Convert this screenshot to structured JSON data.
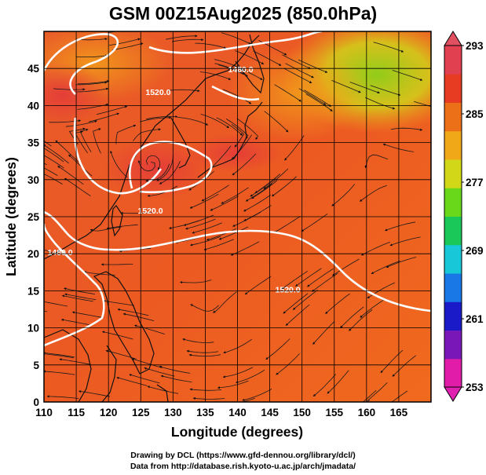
{
  "title": "GSM 00Z15Aug2025 (850.0hPa)",
  "x_axis": {
    "label": "Longitude (degrees)",
    "ticks": [
      "110",
      "115",
      "120",
      "125",
      "130",
      "135",
      "140",
      "145",
      "150",
      "155",
      "160",
      "165"
    ],
    "range": [
      110,
      170
    ]
  },
  "y_axis": {
    "label": "Latitude  (degrees)",
    "ticks": [
      "0",
      "5",
      "10",
      "15",
      "20",
      "25",
      "30",
      "35",
      "40",
      "45"
    ],
    "range": [
      0,
      50
    ]
  },
  "colorbar": {
    "ticks": [
      "293",
      "285",
      "277",
      "269",
      "261",
      "253"
    ],
    "range": [
      253,
      293
    ],
    "colors": [
      "#e01ca8",
      "#7a17b8",
      "#1a1ac8",
      "#1a78e6",
      "#18c8d8",
      "#1ac85a",
      "#6ad81a",
      "#d2d818",
      "#f0a818",
      "#ec7018",
      "#e83c22",
      "#e04050"
    ]
  },
  "contours": [
    {
      "label": "1480.0",
      "lon": 140.5,
      "lat": 44.5
    },
    {
      "label": "1520.0",
      "lon": 126.5,
      "lat": 25.4
    },
    {
      "label": "1480.0",
      "lon": 112.5,
      "lat": 19.8
    },
    {
      "label": "1520.0",
      "lon": 147.8,
      "lat": 14.8
    },
    {
      "label": "1520.0",
      "lon": 127.7,
      "lat": 41.4
    }
  ],
  "credits": {
    "line1": "Drawing by DCL (https://www.gfd-dennou.org/library/dcl/)",
    "line2": "Data from http://database.rish.kyoto-u.ac.jp/arch/jmadata/"
  }
}
